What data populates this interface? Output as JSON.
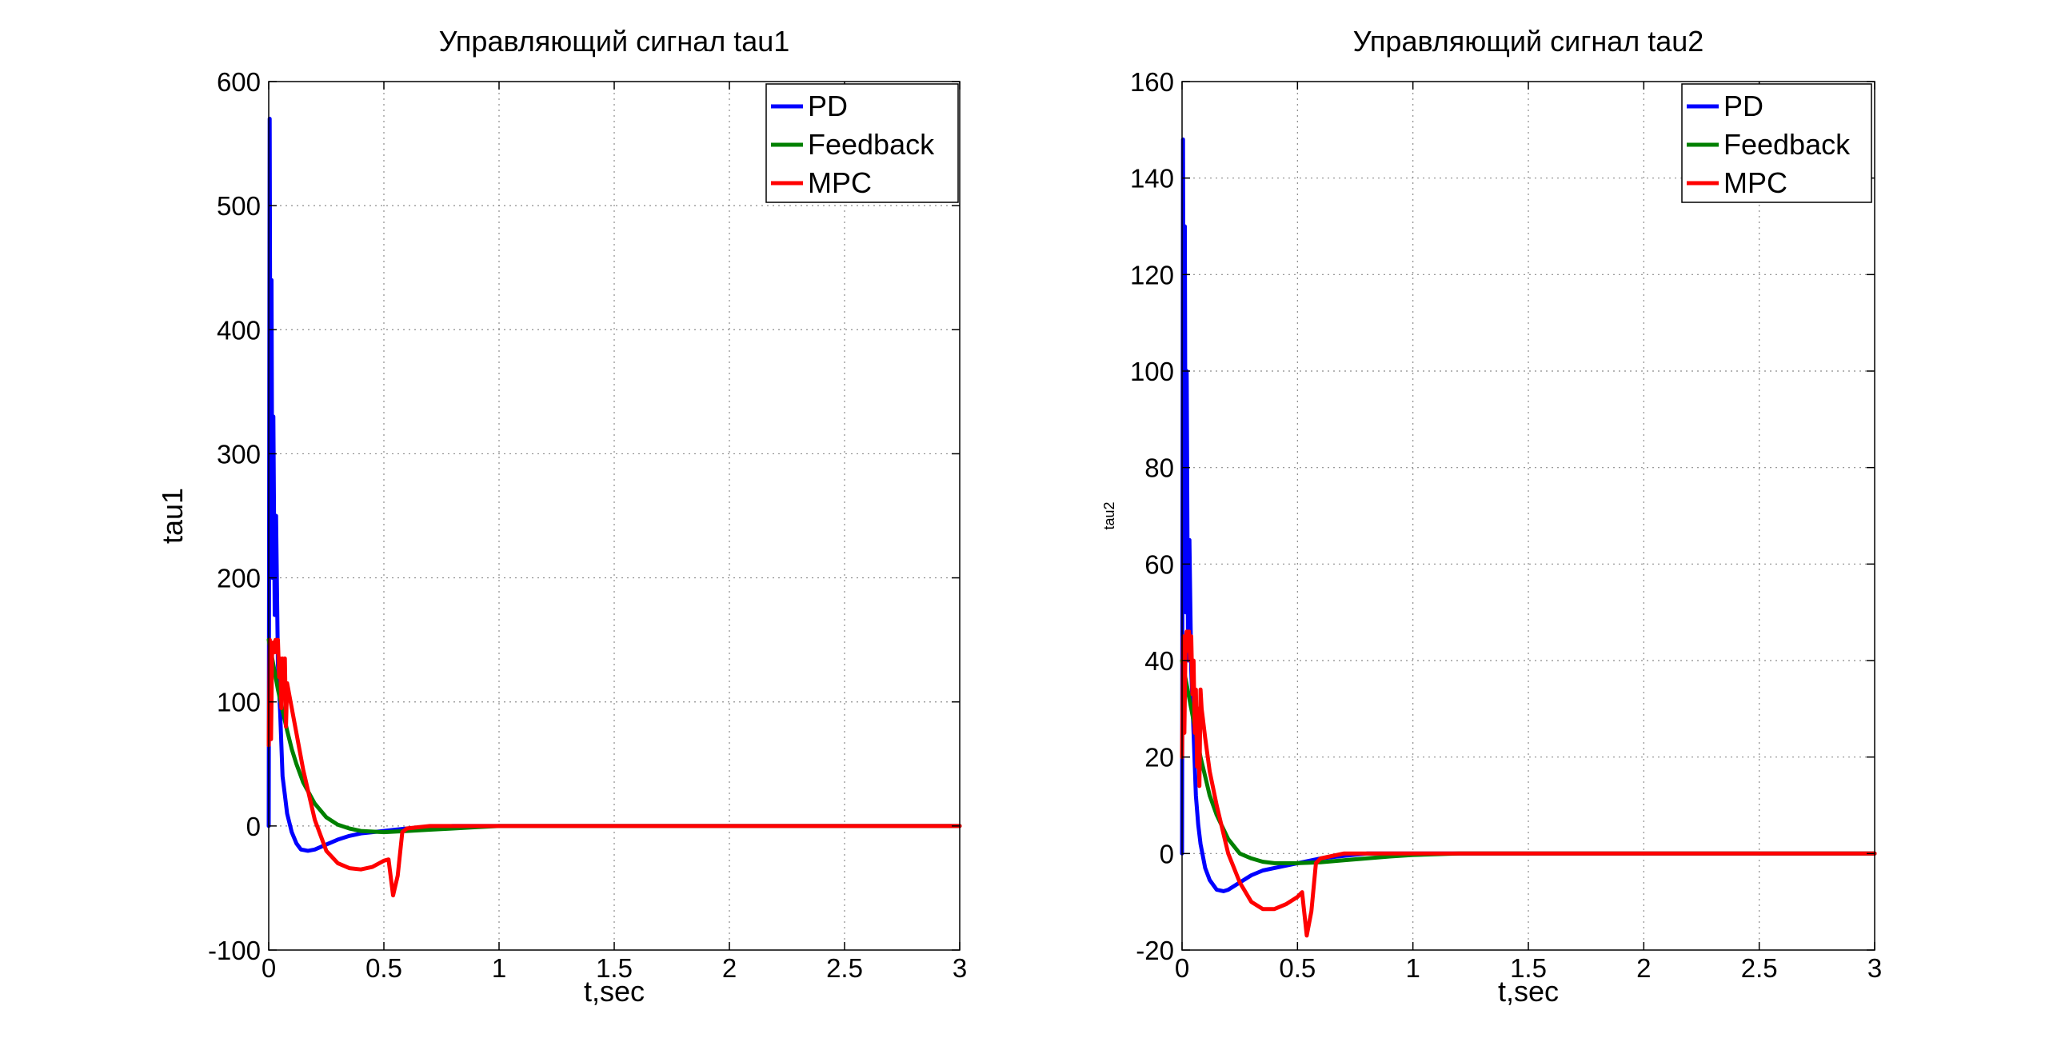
{
  "chart_data": [
    {
      "type": "line",
      "title": "Управляющий сигнал tau1",
      "xlabel": "t,sec",
      "ylabel": "tau1",
      "xlim": [
        0,
        3
      ],
      "ylim": [
        -100,
        600
      ],
      "xticks": [
        0,
        0.5,
        1,
        1.5,
        2,
        2.5,
        3
      ],
      "xtick_labels": [
        "0",
        "0.5",
        "1",
        "1.5",
        "2",
        "2.5",
        "3"
      ],
      "yticks": [
        -100,
        0,
        100,
        200,
        300,
        400,
        500,
        600
      ],
      "ytick_labels": [
        "-100",
        "0",
        "100",
        "200",
        "300",
        "400",
        "500",
        "600"
      ],
      "grid": true,
      "legend": "top-right",
      "series": [
        {
          "name": "PD",
          "color": "#0000ff",
          "points": [
            [
              0,
              0
            ],
            [
              0.004,
              570
            ],
            [
              0.008,
              260
            ],
            [
              0.012,
              440
            ],
            [
              0.016,
              200
            ],
            [
              0.02,
              330
            ],
            [
              0.026,
              170
            ],
            [
              0.032,
              250
            ],
            [
              0.04,
              130
            ],
            [
              0.05,
              90
            ],
            [
              0.06,
              40
            ],
            [
              0.07,
              25
            ],
            [
              0.08,
              10
            ],
            [
              0.1,
              -5
            ],
            [
              0.12,
              -14
            ],
            [
              0.14,
              -19
            ],
            [
              0.17,
              -20
            ],
            [
              0.2,
              -19
            ],
            [
              0.25,
              -15
            ],
            [
              0.3,
              -11
            ],
            [
              0.35,
              -8
            ],
            [
              0.4,
              -6
            ],
            [
              0.45,
              -5
            ],
            [
              0.5,
              -4
            ],
            [
              0.55,
              -3
            ],
            [
              0.6,
              -2
            ],
            [
              0.7,
              -1
            ],
            [
              0.8,
              0
            ],
            [
              1,
              0
            ],
            [
              1.5,
              0
            ],
            [
              2,
              0
            ],
            [
              2.5,
              0
            ],
            [
              3,
              0
            ]
          ]
        },
        {
          "name": "Feedback",
          "color": "#008000",
          "points": [
            [
              0,
              150
            ],
            [
              0.02,
              130
            ],
            [
              0.04,
              110
            ],
            [
              0.06,
              93
            ],
            [
              0.08,
              77
            ],
            [
              0.1,
              62
            ],
            [
              0.12,
              50
            ],
            [
              0.15,
              35
            ],
            [
              0.2,
              18
            ],
            [
              0.25,
              7
            ],
            [
              0.3,
              1
            ],
            [
              0.35,
              -2
            ],
            [
              0.4,
              -4
            ],
            [
              0.5,
              -5
            ],
            [
              0.6,
              -4
            ],
            [
              0.7,
              -3
            ],
            [
              0.8,
              -2
            ],
            [
              0.9,
              -1
            ],
            [
              1,
              0
            ],
            [
              1.2,
              0
            ],
            [
              1.5,
              0
            ],
            [
              2,
              0
            ],
            [
              2.5,
              0
            ],
            [
              3,
              0
            ]
          ]
        },
        {
          "name": "MPC",
          "color": "#ff0000",
          "points": [
            [
              0,
              65
            ],
            [
              0.005,
              150
            ],
            [
              0.01,
              70
            ],
            [
              0.015,
              145
            ],
            [
              0.02,
              148
            ],
            [
              0.025,
              140
            ],
            [
              0.03,
              150
            ],
            [
              0.035,
              140
            ],
            [
              0.04,
              150
            ],
            [
              0.045,
              120
            ],
            [
              0.05,
              135
            ],
            [
              0.055,
              95
            ],
            [
              0.06,
              135
            ],
            [
              0.065,
              110
            ],
            [
              0.07,
              135
            ],
            [
              0.075,
              80
            ],
            [
              0.08,
              115
            ],
            [
              0.085,
              110
            ],
            [
              0.09,
              105
            ],
            [
              0.1,
              95
            ],
            [
              0.12,
              75
            ],
            [
              0.15,
              45
            ],
            [
              0.2,
              5
            ],
            [
              0.25,
              -20
            ],
            [
              0.3,
              -30
            ],
            [
              0.35,
              -34
            ],
            [
              0.4,
              -35
            ],
            [
              0.45,
              -33
            ],
            [
              0.5,
              -28
            ],
            [
              0.52,
              -27
            ],
            [
              0.54,
              -56
            ],
            [
              0.56,
              -40
            ],
            [
              0.58,
              -5
            ],
            [
              0.6,
              -2
            ],
            [
              0.65,
              -1
            ],
            [
              0.7,
              0
            ],
            [
              0.8,
              0
            ],
            [
              1,
              0
            ],
            [
              1.5,
              0
            ],
            [
              2,
              0
            ],
            [
              2.5,
              0
            ],
            [
              3,
              0
            ]
          ]
        }
      ]
    },
    {
      "type": "line",
      "title": "Управляющий сигнал tau2",
      "xlabel": "t,sec",
      "ylabel": "tau2",
      "xlim": [
        0,
        3
      ],
      "ylim": [
        -20,
        160
      ],
      "xticks": [
        0,
        0.5,
        1,
        1.5,
        2,
        2.5,
        3
      ],
      "xtick_labels": [
        "0",
        "0.5",
        "1",
        "1.5",
        "2",
        "2.5",
        "3"
      ],
      "yticks": [
        -20,
        0,
        20,
        40,
        60,
        80,
        100,
        120,
        140,
        160
      ],
      "ytick_labels": [
        "-20",
        "0",
        "20",
        "40",
        "60",
        "80",
        "100",
        "120",
        "140",
        "160"
      ],
      "grid": true,
      "legend": "top-right",
      "series": [
        {
          "name": "PD",
          "color": "#0000ff",
          "points": [
            [
              0,
              0
            ],
            [
              0.004,
              148
            ],
            [
              0.008,
              70
            ],
            [
              0.012,
              130
            ],
            [
              0.016,
              50
            ],
            [
              0.02,
              100
            ],
            [
              0.026,
              40
            ],
            [
              0.032,
              65
            ],
            [
              0.04,
              38
            ],
            [
              0.05,
              25
            ],
            [
              0.06,
              12
            ],
            [
              0.07,
              6
            ],
            [
              0.08,
              2
            ],
            [
              0.1,
              -3
            ],
            [
              0.12,
              -5.5
            ],
            [
              0.15,
              -7.5
            ],
            [
              0.18,
              -7.8
            ],
            [
              0.2,
              -7.5
            ],
            [
              0.25,
              -6
            ],
            [
              0.3,
              -4.5
            ],
            [
              0.35,
              -3.5
            ],
            [
              0.4,
              -3
            ],
            [
              0.45,
              -2.5
            ],
            [
              0.5,
              -2
            ],
            [
              0.55,
              -1.5
            ],
            [
              0.6,
              -1
            ],
            [
              0.7,
              -0.5
            ],
            [
              0.8,
              0
            ],
            [
              1,
              0
            ],
            [
              1.5,
              0
            ],
            [
              2,
              0
            ],
            [
              2.5,
              0
            ],
            [
              3,
              0
            ]
          ]
        },
        {
          "name": "Feedback",
          "color": "#008000",
          "points": [
            [
              0,
              40
            ],
            [
              0.02,
              35
            ],
            [
              0.04,
              30
            ],
            [
              0.06,
              25
            ],
            [
              0.08,
              20
            ],
            [
              0.1,
              16
            ],
            [
              0.12,
              12
            ],
            [
              0.15,
              8
            ],
            [
              0.2,
              3
            ],
            [
              0.25,
              0
            ],
            [
              0.3,
              -1
            ],
            [
              0.35,
              -1.7
            ],
            [
              0.4,
              -2
            ],
            [
              0.5,
              -2
            ],
            [
              0.6,
              -1.8
            ],
            [
              0.7,
              -1.4
            ],
            [
              0.8,
              -1
            ],
            [
              0.9,
              -0.6
            ],
            [
              1,
              -0.3
            ],
            [
              1.2,
              0
            ],
            [
              1.5,
              0
            ],
            [
              2,
              0
            ],
            [
              2.5,
              0
            ],
            [
              3,
              0
            ]
          ]
        },
        {
          "name": "MPC",
          "color": "#ff0000",
          "points": [
            [
              0,
              20
            ],
            [
              0.005,
              45
            ],
            [
              0.01,
              25
            ],
            [
              0.015,
              43
            ],
            [
              0.02,
              46
            ],
            [
              0.025,
              42
            ],
            [
              0.03,
              46
            ],
            [
              0.035,
              40
            ],
            [
              0.04,
              45
            ],
            [
              0.045,
              33
            ],
            [
              0.05,
              40
            ],
            [
              0.055,
              25
            ],
            [
              0.06,
              34
            ],
            [
              0.065,
              18
            ],
            [
              0.07,
              30
            ],
            [
              0.075,
              14
            ],
            [
              0.08,
              34
            ],
            [
              0.085,
              30
            ],
            [
              0.09,
              28
            ],
            [
              0.1,
              24
            ],
            [
              0.12,
              17
            ],
            [
              0.15,
              10
            ],
            [
              0.2,
              0
            ],
            [
              0.25,
              -6
            ],
            [
              0.3,
              -10
            ],
            [
              0.35,
              -11.5
            ],
            [
              0.4,
              -11.5
            ],
            [
              0.45,
              -10.5
            ],
            [
              0.5,
              -9
            ],
            [
              0.52,
              -8
            ],
            [
              0.54,
              -17
            ],
            [
              0.56,
              -12
            ],
            [
              0.58,
              -2
            ],
            [
              0.6,
              -1
            ],
            [
              0.65,
              -0.5
            ],
            [
              0.7,
              0
            ],
            [
              0.8,
              0
            ],
            [
              1,
              0
            ],
            [
              1.5,
              0
            ],
            [
              2,
              0
            ],
            [
              2.5,
              0
            ],
            [
              3,
              0
            ]
          ]
        }
      ]
    }
  ]
}
